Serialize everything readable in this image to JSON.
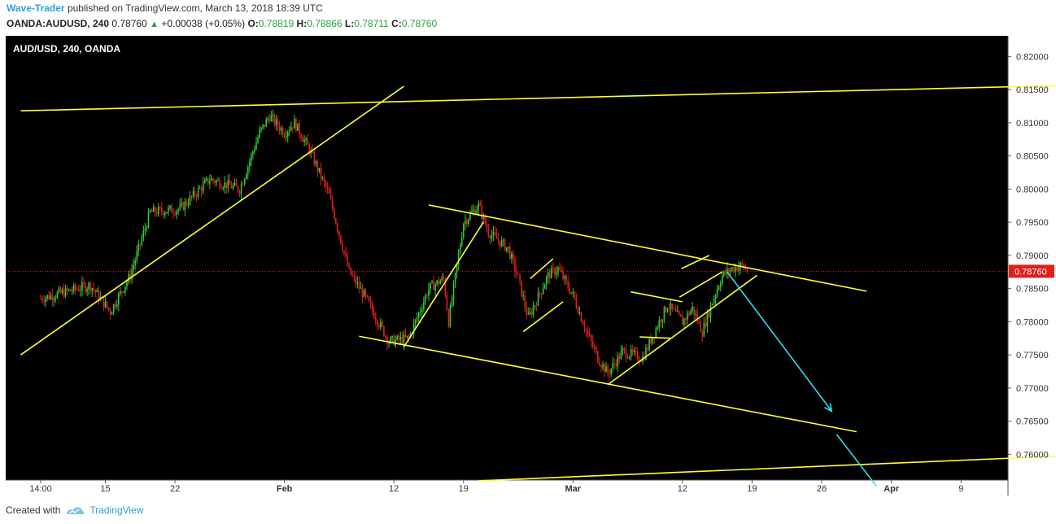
{
  "header": {
    "author": "Wave-Trader",
    "published_text": "published on TradingView.com, March 13, 2018 18:39 UTC"
  },
  "ticker": {
    "symbol": "OANDA:AUDUSD, 240",
    "last": "0.78760",
    "change": "+0.00038 (+0.05%)",
    "open_label": "O:",
    "open": "0.78819",
    "high_label": "H:",
    "high": "0.78866",
    "low_label": "L:",
    "low": "0.78711",
    "close_label": "C:",
    "close": "0.78760"
  },
  "footer": {
    "created_with": "Created with",
    "brand": "TradingView"
  },
  "colors": {
    "background": "#000000",
    "up_candle": "#33cc33",
    "down_candle": "#e0201b",
    "trendline": "#ffff33",
    "projection_arrow": "#33ddee",
    "price_line": "#e0201b",
    "axis_bg": "#ffffff"
  },
  "chart_data": {
    "type": "candlestick",
    "title": "AUD/USD, 240, OANDA",
    "last_price_label": "0.78760",
    "ylim": [
      0.7555,
      0.8225
    ],
    "y_ticks": [
      "0.82000",
      "0.81500",
      "0.81000",
      "0.80500",
      "0.80000",
      "0.79500",
      "0.79000",
      "0.78500",
      "0.78000",
      "0.77500",
      "0.77000",
      "0.76500",
      "0.76000"
    ],
    "x_ticks": [
      "14:00",
      "15",
      "22",
      "Feb",
      "12",
      "19",
      "Mar",
      "12",
      "19",
      "26",
      "Apr",
      "9"
    ],
    "x_tick_bold": [
      "Feb",
      "Mar",
      "Apr"
    ],
    "price_path": [
      {
        "d": 0,
        "p": 0.7835
      },
      {
        "d": 5,
        "p": 0.7855
      },
      {
        "d": 7,
        "p": 0.7815
      },
      {
        "d": 9,
        "p": 0.787
      },
      {
        "d": 11,
        "p": 0.7965
      },
      {
        "d": 14,
        "p": 0.797
      },
      {
        "d": 17,
        "p": 0.8015
      },
      {
        "d": 20,
        "p": 0.8
      },
      {
        "d": 22,
        "p": 0.8085
      },
      {
        "d": 23,
        "p": 0.811
      },
      {
        "d": 24.5,
        "p": 0.8085
      },
      {
        "d": 25.5,
        "p": 0.81
      },
      {
        "d": 27,
        "p": 0.806
      },
      {
        "d": 29,
        "p": 0.799
      },
      {
        "d": 31,
        "p": 0.7875
      },
      {
        "d": 32.5,
        "p": 0.784
      },
      {
        "d": 35,
        "p": 0.777
      },
      {
        "d": 37,
        "p": 0.7775
      },
      {
        "d": 39,
        "p": 0.785
      },
      {
        "d": 40.5,
        "p": 0.7865
      },
      {
        "d": 41,
        "p": 0.78
      },
      {
        "d": 42.5,
        "p": 0.795
      },
      {
        "d": 44,
        "p": 0.7975
      },
      {
        "d": 45,
        "p": 0.7935
      },
      {
        "d": 47,
        "p": 0.791
      },
      {
        "d": 48,
        "p": 0.7865
      },
      {
        "d": 49,
        "p": 0.7805
      },
      {
        "d": 51,
        "p": 0.787
      },
      {
        "d": 52,
        "p": 0.788
      },
      {
        "d": 53.5,
        "p": 0.784
      },
      {
        "d": 55,
        "p": 0.778
      },
      {
        "d": 56,
        "p": 0.7745
      },
      {
        "d": 57,
        "p": 0.7722
      },
      {
        "d": 58.5,
        "p": 0.7755
      },
      {
        "d": 60.5,
        "p": 0.7745
      },
      {
        "d": 62,
        "p": 0.7795
      },
      {
        "d": 63,
        "p": 0.7825
      },
      {
        "d": 64.5,
        "p": 0.78
      },
      {
        "d": 65.5,
        "p": 0.782
      },
      {
        "d": 66.5,
        "p": 0.7785
      },
      {
        "d": 67.5,
        "p": 0.783
      },
      {
        "d": 68.5,
        "p": 0.787
      },
      {
        "d": 69.5,
        "p": 0.788
      },
      {
        "d": 70.5,
        "p": 0.7885
      },
      {
        "d": 71,
        "p": 0.7876
      }
    ],
    "annotations": {
      "trendlines": [
        {
          "d1": -2,
          "p1": 0.8118,
          "d2": 127,
          "p2": 0.8165
        },
        {
          "d1": -2,
          "p1": 0.775,
          "d2": 36.5,
          "p2": 0.8155
        },
        {
          "d1": 39,
          "p1": 0.7976,
          "d2": 83,
          "p2": 0.7846
        },
        {
          "d1": 32,
          "p1": 0.7778,
          "d2": 82,
          "p2": 0.7634
        },
        {
          "d1": 36.5,
          "p1": 0.7762,
          "d2": 44.5,
          "p2": 0.795
        },
        {
          "d1": 49.2,
          "p1": 0.7865,
          "d2": 51.5,
          "p2": 0.7895
        },
        {
          "d1": 48.5,
          "p1": 0.7785,
          "d2": 52.5,
          "p2": 0.783
        },
        {
          "d1": 57,
          "p1": 0.7705,
          "d2": 72,
          "p2": 0.787
        },
        {
          "d1": 59.3,
          "p1": 0.7845,
          "d2": 64.5,
          "p2": 0.783
        },
        {
          "d1": 60.2,
          "p1": 0.7777,
          "d2": 63.3,
          "p2": 0.7775
        },
        {
          "d1": 64.4,
          "p1": 0.788,
          "d2": 67.2,
          "p2": 0.79
        },
        {
          "d1": 64.2,
          "p1": 0.7837,
          "d2": 68.5,
          "p2": 0.7875
        },
        {
          "d1": 44,
          "p1": 0.756,
          "d2": 127,
          "p2": 0.7613
        }
      ],
      "arrows": [
        {
          "d1": 69,
          "p1": 0.7875,
          "d2": 79.5,
          "p2": 0.7665,
          "head": true
        },
        {
          "d1": 80,
          "p1": 0.763,
          "d2": 84,
          "p2": 0.7552,
          "head": false
        }
      ]
    }
  }
}
